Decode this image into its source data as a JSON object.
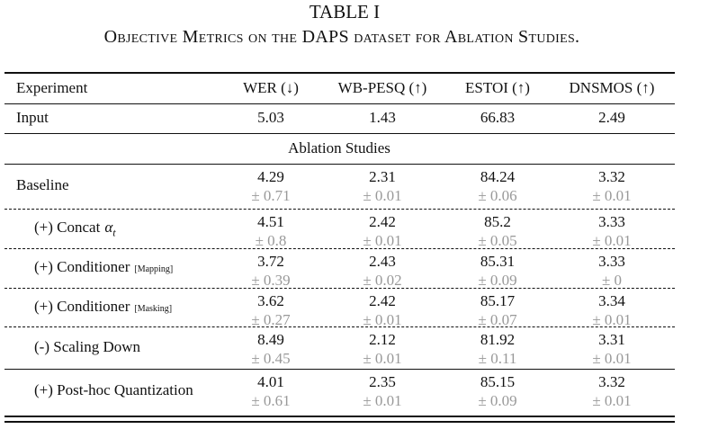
{
  "title": "TABLE I",
  "caption": "Objective Metrics on the DAPS dataset for Ablation Studies.",
  "table": {
    "header": [
      "Experiment",
      "WER (↓)",
      "WB-PESQ (↑)",
      "ESTOI (↑)",
      "DNSMOS (↑)"
    ],
    "input": {
      "label": "Input",
      "values": [
        5.03,
        1.43,
        66.83,
        2.49
      ]
    },
    "section": "Ablation Studies",
    "rows": [
      {
        "label": "Baseline",
        "means": [
          4.29,
          2.31,
          84.24,
          3.32
        ],
        "stds": [
          "± 0.71",
          "± 0.01",
          "± 0.06",
          "± 0.01"
        ]
      },
      {
        "label": "(+) Concat",
        "math": "α",
        "sub": "t",
        "means": [
          4.51,
          2.42,
          85.2,
          3.33
        ],
        "stds": [
          "± 0.8",
          "± 0.01",
          "± 0.05",
          "± 0.01"
        ]
      },
      {
        "label": "(+) Conditioner",
        "note": "[Mapping]",
        "means": [
          3.72,
          2.43,
          85.31,
          3.33
        ],
        "stds": [
          "± 0.39",
          "± 0.02",
          "± 0.09",
          "± 0"
        ]
      },
      {
        "label": "(+) Conditioner",
        "note": "[Masking]",
        "means": [
          3.62,
          2.42,
          85.17,
          3.34
        ],
        "stds": [
          "± 0.27",
          "± 0.01",
          "± 0.07",
          "± 0.01"
        ]
      },
      {
        "label": "(-) Scaling Down",
        "means": [
          8.49,
          2.12,
          81.92,
          3.31
        ],
        "stds": [
          "± 0.45",
          "± 0.01",
          "± 0.11",
          "± 0.01"
        ]
      },
      {
        "label": "(+) Post-hoc Quantization",
        "means": [
          4.01,
          2.35,
          85.15,
          3.32
        ],
        "stds": [
          "± 0.61",
          "± 0.01",
          "± 0.09",
          "± 0.01"
        ]
      }
    ]
  }
}
